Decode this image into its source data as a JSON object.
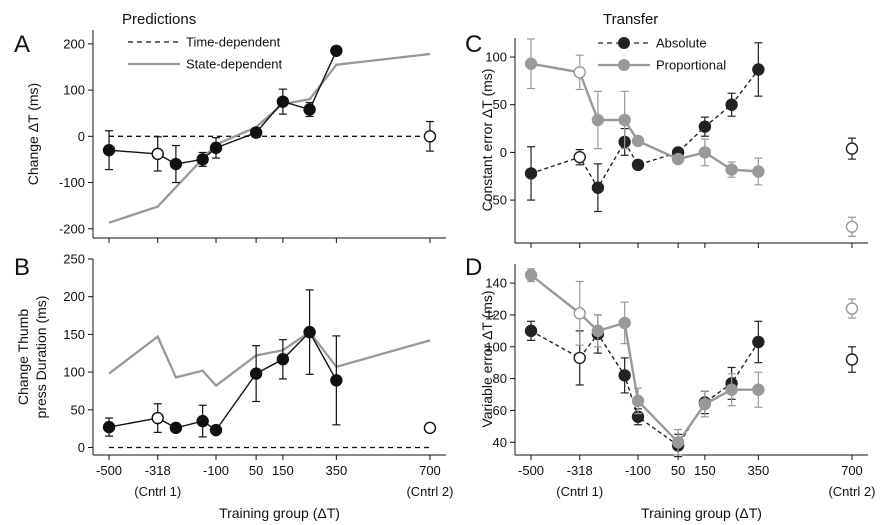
{
  "headers": {
    "left": "Predictions",
    "right": "Transfer"
  },
  "x_tick_labels": [
    "-500",
    "-318",
    "-100",
    "50",
    "150",
    "350",
    "700"
  ],
  "x_tick_values": [
    -500,
    -318,
    -100,
    50,
    150,
    350,
    700
  ],
  "x_sublabels": {
    "left": "(Cntrl 1)",
    "right": "(Cntrl 2)"
  },
  "x_label": "Training group (ΔT)",
  "chart_data": [
    {
      "panel": "A",
      "type": "line",
      "title": "",
      "xlabel": "",
      "ylabel": "Change ΔT (ms)",
      "ylim": [
        -220,
        230
      ],
      "yticks": [
        -200,
        -100,
        0,
        100,
        200
      ],
      "legend": {
        "position": "top",
        "entries": [
          {
            "label": "Time-dependent",
            "style": "dashed",
            "color": "#111111"
          },
          {
            "label": "State-dependent",
            "style": "solid",
            "color": "#999999"
          }
        ]
      },
      "lines": [
        {
          "name": "Time-dependent",
          "color": "#111111",
          "dashed": true,
          "x": [
            -500,
            700
          ],
          "y": [
            0,
            0
          ]
        },
        {
          "name": "State-dependent",
          "color": "#999999",
          "dashed": false,
          "x": [
            -500,
            -318,
            -100,
            50,
            150,
            250,
            350,
            700
          ],
          "y": [
            -187,
            -152,
            -18,
            20,
            70,
            80,
            155,
            178
          ]
        }
      ],
      "points": [
        {
          "series": "Data",
          "color": "#111111",
          "connect": true,
          "x": [
            -500,
            -318,
            -250,
            -150,
            -100,
            50,
            150,
            250,
            350
          ],
          "y": [
            -30,
            -38,
            -60,
            -50,
            -25,
            8,
            75,
            58,
            185
          ],
          "err": [
            42,
            37,
            40,
            15,
            22,
            10,
            27,
            15,
            0
          ],
          "filled": [
            true,
            false,
            true,
            true,
            true,
            true,
            true,
            true,
            true
          ]
        },
        {
          "series": "Control",
          "color": "#111111",
          "connect": false,
          "x": [
            700
          ],
          "y": [
            0
          ],
          "err": [
            32
          ],
          "filled": [
            false
          ]
        }
      ]
    },
    {
      "panel": "B",
      "type": "line",
      "title": "",
      "xlabel": "Training group (ΔT)",
      "ylabel": "Change Thumb press Duration (ms)",
      "ylim": [
        -10,
        250
      ],
      "yticks": [
        0,
        50,
        100,
        150,
        200,
        250
      ],
      "lines": [
        {
          "name": "Zero",
          "color": "#111111",
          "dashed": true,
          "x": [
            -500,
            700
          ],
          "y": [
            0,
            0
          ]
        },
        {
          "name": "State-dependent",
          "color": "#999999",
          "dashed": false,
          "x": [
            -500,
            -318,
            -250,
            -150,
            -100,
            50,
            150,
            250,
            350,
            700
          ],
          "y": [
            98,
            147,
            93,
            102,
            82,
            122,
            129,
            153,
            107,
            142
          ]
        }
      ],
      "points": [
        {
          "series": "Data",
          "color": "#111111",
          "connect": true,
          "x": [
            -500,
            -318,
            -250,
            -150,
            -100,
            50,
            150,
            250,
            350
          ],
          "y": [
            27,
            39,
            26,
            35,
            23,
            98,
            117,
            153,
            89
          ],
          "err": [
            12,
            19,
            4,
            21,
            4,
            37,
            26,
            56,
            59
          ],
          "filled": [
            true,
            false,
            true,
            true,
            true,
            true,
            true,
            true,
            true
          ]
        },
        {
          "series": "Control",
          "color": "#111111",
          "connect": false,
          "x": [
            700
          ],
          "y": [
            26
          ],
          "err": [
            0
          ],
          "filled": [
            false
          ]
        }
      ]
    },
    {
      "panel": "C",
      "type": "line",
      "title": "",
      "xlabel": "",
      "ylabel": "Constant error ΔT (ms)",
      "ylim": [
        -95,
        120
      ],
      "yticks": [
        -50,
        0,
        50,
        100
      ],
      "legend": {
        "position": "top",
        "entries": [
          {
            "label": "Absolute",
            "style": "dashed-marker",
            "color": "#222222"
          },
          {
            "label": "Proportional",
            "style": "solid-marker",
            "color": "#999999"
          }
        ]
      },
      "points": [
        {
          "series": "Absolute",
          "color": "#222222",
          "connect": true,
          "dashed": true,
          "x": [
            -500,
            -318,
            -250,
            -150,
            -100,
            50,
            150,
            250,
            350
          ],
          "y": [
            -22,
            -5,
            -37,
            11,
            -13,
            0,
            27,
            50,
            87
          ],
          "err": [
            28,
            8,
            25,
            14,
            3,
            3,
            10,
            12,
            28
          ],
          "filled": [
            true,
            false,
            true,
            true,
            true,
            true,
            true,
            true,
            true
          ]
        },
        {
          "series": "Proportional",
          "color": "#999999",
          "connect": true,
          "dashed": false,
          "x": [
            -500,
            -318,
            -250,
            -150,
            -100,
            50,
            150,
            250,
            350
          ],
          "y": [
            93,
            84,
            34,
            34,
            12,
            -7,
            0,
            -18,
            -20
          ],
          "err": [
            26,
            18,
            30,
            30,
            3,
            4,
            14,
            8,
            14
          ],
          "filled": [
            true,
            false,
            true,
            true,
            true,
            true,
            true,
            true,
            true
          ]
        },
        {
          "series": "Absolute control",
          "color": "#222222",
          "connect": false,
          "x": [
            700
          ],
          "y": [
            4
          ],
          "err": [
            11
          ],
          "filled": [
            false
          ]
        },
        {
          "series": "Proportional control",
          "color": "#999999",
          "connect": false,
          "x": [
            700
          ],
          "y": [
            -78
          ],
          "err": [
            10
          ],
          "filled": [
            false
          ]
        }
      ]
    },
    {
      "panel": "D",
      "type": "line",
      "title": "",
      "xlabel": "Training group (ΔT)",
      "ylabel": "Variable error ΔT (ms)",
      "ylim": [
        32,
        152
      ],
      "yticks": [
        40,
        60,
        80,
        100,
        120,
        140
      ],
      "points": [
        {
          "series": "Absolute",
          "color": "#222222",
          "connect": true,
          "dashed": true,
          "x": [
            -500,
            -318,
            -250,
            -150,
            -100,
            50,
            150,
            250,
            350
          ],
          "y": [
            110,
            93,
            108,
            82,
            56,
            38,
            65,
            77,
            103
          ],
          "err": [
            6,
            17,
            12,
            11,
            5,
            7,
            7,
            10,
            13
          ],
          "filled": [
            true,
            false,
            true,
            true,
            true,
            true,
            true,
            true,
            true
          ]
        },
        {
          "series": "Proportional",
          "color": "#999999",
          "connect": true,
          "dashed": false,
          "x": [
            -500,
            -318,
            -250,
            -150,
            -100,
            50,
            150,
            250,
            350
          ],
          "y": [
            145,
            121,
            110,
            115,
            66,
            40,
            64,
            73,
            73
          ],
          "err": [
            4,
            20,
            10,
            13,
            8,
            8,
            8,
            10,
            11
          ],
          "filled": [
            true,
            false,
            true,
            true,
            true,
            true,
            true,
            true,
            true
          ]
        },
        {
          "series": "Absolute control",
          "color": "#222222",
          "connect": false,
          "x": [
            700
          ],
          "y": [
            92
          ],
          "err": [
            8
          ],
          "filled": [
            false
          ]
        },
        {
          "series": "Proportional control",
          "color": "#999999",
          "connect": false,
          "x": [
            700
          ],
          "y": [
            124
          ],
          "err": [
            6
          ],
          "filled": [
            false
          ]
        }
      ]
    }
  ]
}
